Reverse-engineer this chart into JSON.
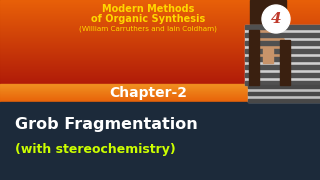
{
  "figsize": [
    3.2,
    1.8
  ],
  "dpi": 100,
  "title_line1": "Modern Methods",
  "title_line2": "of Organic Synthesis",
  "title_line3": "(William Carruthers and Iain Coldham)",
  "title_color": "#FFD700",
  "chapter_text": "Chapter-2",
  "chapter_color": "#FFFFFF",
  "main_text": "Grob Fragmentation",
  "main_color": "#FFFFFF",
  "sub_text": "(with stereochemistry)",
  "sub_color": "#CCFF00",
  "badge_color": "#FFFFFF",
  "badge_text": "4",
  "badge_text_color": "#c0392b",
  "top_bg_left": "#b22000",
  "top_bg_right": "#c03010",
  "mid_bg": "#e06010",
  "lower_bg": "#1c2a3a",
  "person_skin": "#c8946a",
  "person_hair": "#3a2010",
  "person_shirt_light": "#e0e0e0",
  "person_shirt_dark": "#404040"
}
